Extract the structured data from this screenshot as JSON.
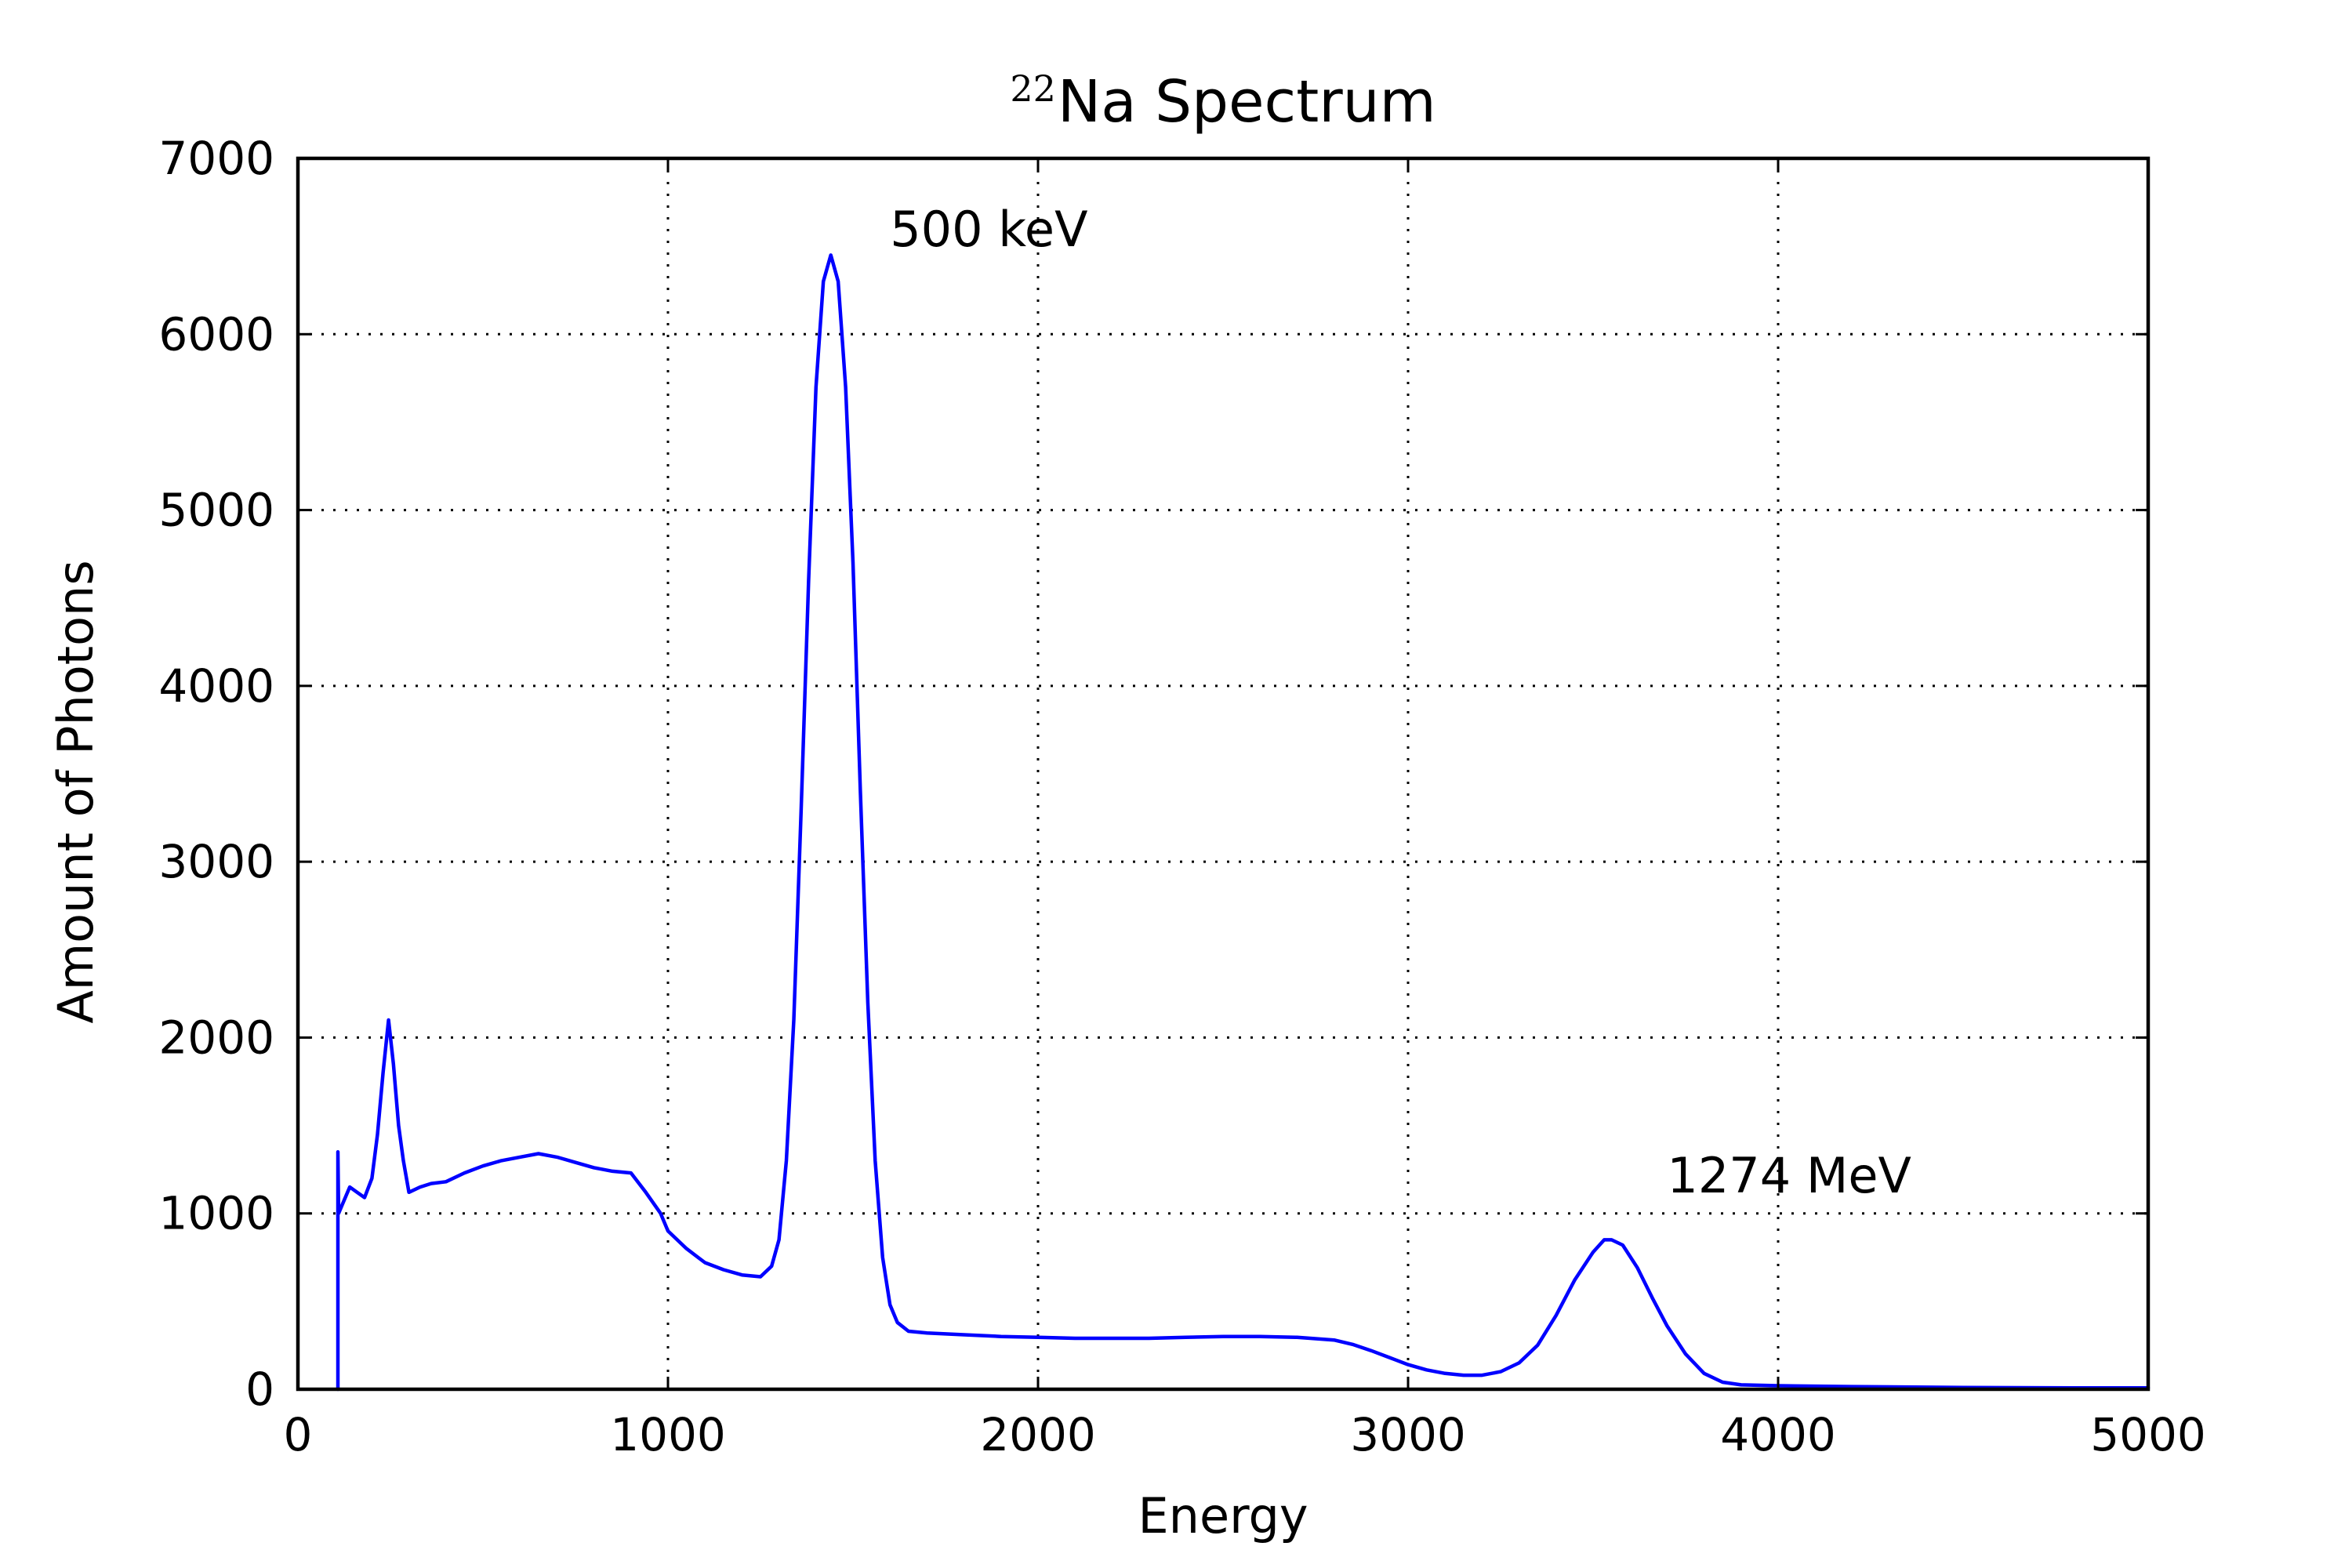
{
  "chart_data": {
    "type": "line",
    "title": "Na Spectrum",
    "title_superscript": "22",
    "xlabel": "Energy",
    "ylabel": "Amount of Photons",
    "xlim": [
      0,
      5000
    ],
    "ylim": [
      0,
      7000
    ],
    "x_ticks": [
      0,
      1000,
      2000,
      3000,
      4000,
      5000
    ],
    "y_ticks": [
      0,
      1000,
      2000,
      3000,
      4000,
      5000,
      6000,
      7000
    ],
    "x_tick_labels": [
      "0",
      "1000",
      "2000",
      "3000",
      "4000",
      "5000"
    ],
    "y_tick_labels": [
      "0",
      "1000",
      "2000",
      "3000",
      "4000",
      "5000",
      "6000",
      "7000"
    ],
    "grid": true,
    "series": [
      {
        "color": "#0000ff",
        "points": [
          [
            108,
            0
          ],
          [
            108,
            1350
          ],
          [
            110,
            1000
          ],
          [
            120,
            1050
          ],
          [
            140,
            1150
          ],
          [
            160,
            1120
          ],
          [
            180,
            1090
          ],
          [
            200,
            1200
          ],
          [
            215,
            1450
          ],
          [
            230,
            1800
          ],
          [
            245,
            2100
          ],
          [
            258,
            1850
          ],
          [
            272,
            1500
          ],
          [
            285,
            1300
          ],
          [
            300,
            1120
          ],
          [
            330,
            1150
          ],
          [
            360,
            1170
          ],
          [
            400,
            1180
          ],
          [
            450,
            1230
          ],
          [
            500,
            1270
          ],
          [
            550,
            1300
          ],
          [
            600,
            1320
          ],
          [
            650,
            1340
          ],
          [
            700,
            1320
          ],
          [
            750,
            1290
          ],
          [
            800,
            1260
          ],
          [
            850,
            1240
          ],
          [
            900,
            1230
          ],
          [
            940,
            1120
          ],
          [
            980,
            1000
          ],
          [
            1000,
            900
          ],
          [
            1050,
            800
          ],
          [
            1100,
            720
          ],
          [
            1150,
            680
          ],
          [
            1200,
            650
          ],
          [
            1250,
            640
          ],
          [
            1280,
            700
          ],
          [
            1300,
            850
          ],
          [
            1320,
            1300
          ],
          [
            1340,
            2100
          ],
          [
            1360,
            3300
          ],
          [
            1380,
            4600
          ],
          [
            1400,
            5700
          ],
          [
            1420,
            6300
          ],
          [
            1440,
            6450
          ],
          [
            1460,
            6300
          ],
          [
            1480,
            5700
          ],
          [
            1500,
            4700
          ],
          [
            1520,
            3400
          ],
          [
            1540,
            2200
          ],
          [
            1560,
            1300
          ],
          [
            1580,
            750
          ],
          [
            1600,
            480
          ],
          [
            1620,
            380
          ],
          [
            1650,
            330
          ],
          [
            1700,
            320
          ],
          [
            1800,
            310
          ],
          [
            1900,
            300
          ],
          [
            2000,
            295
          ],
          [
            2100,
            290
          ],
          [
            2200,
            290
          ],
          [
            2300,
            290
          ],
          [
            2400,
            295
          ],
          [
            2500,
            300
          ],
          [
            2600,
            300
          ],
          [
            2700,
            295
          ],
          [
            2800,
            280
          ],
          [
            2850,
            255
          ],
          [
            2900,
            220
          ],
          [
            2950,
            180
          ],
          [
            3000,
            140
          ],
          [
            3050,
            110
          ],
          [
            3100,
            90
          ],
          [
            3150,
            80
          ],
          [
            3200,
            80
          ],
          [
            3250,
            100
          ],
          [
            3300,
            150
          ],
          [
            3350,
            250
          ],
          [
            3400,
            420
          ],
          [
            3450,
            620
          ],
          [
            3500,
            780
          ],
          [
            3530,
            850
          ],
          [
            3550,
            850
          ],
          [
            3580,
            820
          ],
          [
            3620,
            690
          ],
          [
            3660,
            520
          ],
          [
            3700,
            360
          ],
          [
            3750,
            200
          ],
          [
            3800,
            90
          ],
          [
            3850,
            40
          ],
          [
            3900,
            25
          ],
          [
            4000,
            20
          ],
          [
            4200,
            15
          ],
          [
            4500,
            10
          ],
          [
            4800,
            8
          ],
          [
            5000,
            8
          ]
        ]
      }
    ],
    "annotations": [
      {
        "text": "500 keV",
        "x": 1600,
        "y": 6500
      },
      {
        "text": "1274 MeV",
        "x": 3700,
        "y": 1120
      }
    ]
  }
}
